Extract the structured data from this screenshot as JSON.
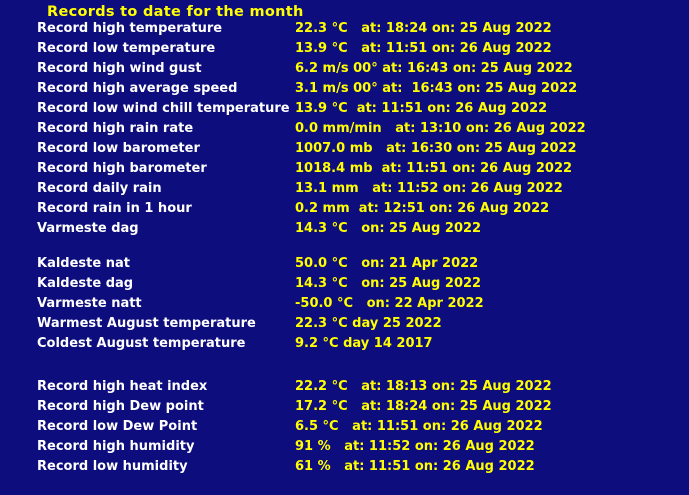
{
  "title": "Records to date for the month",
  "colors": {
    "background": "#0d0d7d",
    "title": "#ffff00",
    "label": "#ffffff",
    "value": "#ffff00"
  },
  "sections": [
    {
      "rows": [
        {
          "label": "Record high temperature",
          "value": "22.3 °C   at: 18:24 on: 25 Aug 2022"
        },
        {
          "label": "Record low temperature",
          "value": "13.9 °C   at: 11:51 on: 26 Aug 2022"
        },
        {
          "label": "Record high wind gust",
          "value": "6.2 m/s 00° at: 16:43 on: 25 Aug 2022"
        },
        {
          "label": "Record high average speed",
          "value": "3.1 m/s 00° at:  16:43 on: 25 Aug 2022"
        },
        {
          "label": "Record low wind chill temperature",
          "value": "13.9 °C  at: 11:51 on: 26 Aug 2022"
        },
        {
          "label": "Record high rain rate",
          "value": "0.0 mm/min   at: 13:10 on: 26 Aug 2022"
        },
        {
          "label": "Record low barometer",
          "value": "1007.0 mb   at: 16:30 on: 25 Aug 2022"
        },
        {
          "label": "Record high barometer",
          "value": "1018.4 mb  at: 11:51 on: 26 Aug 2022"
        },
        {
          "label": "Record daily rain",
          "value": "13.1 mm   at: 11:52 on: 26 Aug 2022"
        },
        {
          "label": "Record rain in 1 hour",
          "value": "0.2 mm  at: 12:51 on: 26 Aug 2022"
        },
        {
          "label": "Varmeste dag",
          "value": "14.3 °C   on: 25 Aug 2022"
        }
      ]
    },
    {
      "rows": [
        {
          "label": "Kaldeste nat",
          "value": "50.0 °C   on: 21 Apr 2022"
        },
        {
          "label": "Kaldeste dag",
          "value": "14.3 °C   on: 25 Aug 2022"
        },
        {
          "label": "Varmeste natt",
          "value": "-50.0 °C   on: 22 Apr 2022"
        },
        {
          "label": "Warmest August temperature",
          "value": "22.3 °C day 25 2022"
        },
        {
          "label": "Coldest August temperature",
          "value": "9.2 °C day 14 2017"
        }
      ]
    },
    {
      "rows": [
        {
          "label": "Record high heat index",
          "value": "22.2 °C   at: 18:13 on: 25 Aug 2022"
        },
        {
          "label": "Record high Dew point",
          "value": "17.2 °C   at: 18:24 on: 25 Aug 2022"
        },
        {
          "label": "Record low Dew Point",
          "value": "6.5 °C   at: 11:51 on: 26 Aug 2022"
        },
        {
          "label": "Record high humidity",
          "value": "91 %   at: 11:52 on: 26 Aug 2022"
        },
        {
          "label": "Record low humidity",
          "value": "61 %   at: 11:51 on: 26 Aug 2022"
        }
      ]
    }
  ]
}
